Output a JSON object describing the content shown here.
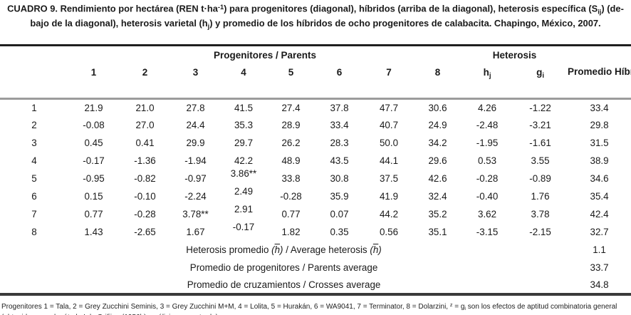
{
  "colors": {
    "text": "#1a1a1a",
    "rule_top": "#1f1f1f",
    "rule_under_header": "#9c9c9c",
    "rule_bottom": "#3a3a3a",
    "background": "#ffffff"
  },
  "title": {
    "line1": [
      {
        "t": "CUADRO 9. Rendimiento por hectárea (REN t·ha",
        "s": ""
      },
      {
        "t": "-1",
        "s": "sup"
      },
      {
        "t": ") para progenitores (diagonal), híbridos (arriba de la diagonal), heterosis específica (S",
        "s": ""
      },
      {
        "t": "ij",
        "s": "sub"
      },
      {
        "t": ") (de-",
        "s": ""
      }
    ],
    "line2": [
      {
        "t": "bajo de la diagonal), heterosis varietal (h",
        "s": ""
      },
      {
        "t": "j",
        "s": "sub"
      },
      {
        "t": ") y promedio de los híbridos de ocho progenitores de calabacita. Chapingo, México, 2007.",
        "s": ""
      }
    ]
  },
  "table": {
    "group_headers": {
      "parents": "Progenitores / Parents",
      "heterosis": "Heterosis",
      "average": "Promedio Híbridos / Hybrids Average"
    },
    "parent_numbers": [
      "1",
      "2",
      "3",
      "4",
      "5",
      "6",
      "7",
      "8"
    ],
    "hj": [
      {
        "t": "h",
        "s": ""
      },
      {
        "t": "j",
        "s": "sub"
      }
    ],
    "gi": [
      {
        "t": "g",
        "s": ""
      },
      {
        "t": "i",
        "s": "sub"
      }
    ],
    "rows": [
      {
        "label": "1",
        "values": [
          "21.9",
          "21.0",
          "27.8",
          "41.5",
          "27.4",
          "37.8",
          "47.7",
          "30.6",
          "4.26",
          "-1.22",
          "33.4"
        ]
      },
      {
        "label": "2",
        "values": [
          "-0.08",
          "27.0",
          "24.4",
          "35.3",
          "28.9",
          "33.4",
          "40.7",
          "24.9",
          "-2.48",
          "-3.21",
          "29.8"
        ]
      },
      {
        "label": "3",
        "values": [
          "0.45",
          "0.41",
          "29.9",
          "29.7",
          "26.2",
          "28.3",
          "50.0",
          "34.2",
          "-1.95",
          "-1.61",
          "31.5"
        ]
      },
      {
        "label": "4",
        "values": [
          "-0.17",
          "-1.36",
          "-1.94",
          "42.2",
          "48.9",
          "43.5",
          "44.1",
          "29.6",
          "0.53",
          "3.55",
          "38.9"
        ]
      },
      {
        "label": "5",
        "values": [
          "-0.95",
          "-0.82",
          "-0.97",
          "3.86**",
          "33.8",
          "30.8",
          "37.5",
          "42.6",
          "-0.28",
          "-0.89",
          "34.6"
        ]
      },
      {
        "label": "6",
        "values": [
          "0.15",
          "-0.10",
          "-2.24",
          "2.49",
          "-0.28",
          "35.9",
          "41.9",
          "32.4",
          "-0.40",
          "1.76",
          "35.4"
        ]
      },
      {
        "label": "7",
        "values": [
          "0.77",
          "-0.28",
          "3.78**",
          "2.91",
          "0.77",
          "0.07",
          "44.2",
          "35.2",
          "3.62",
          "3.78",
          "42.4"
        ]
      },
      {
        "label": "8",
        "values": [
          "1.43",
          "-2.65",
          "1.67",
          "-0.17",
          "1.82",
          "0.35",
          "0.56",
          "35.1",
          "-3.15",
          "-2.15",
          "32.7"
        ]
      }
    ],
    "summary_rows": [
      {
        "label_rich": [
          {
            "t": "Heterosis promedio ",
            "s": ""
          },
          {
            "t": "(",
            "s": "i"
          },
          {
            "t": "h",
            "s": "iov"
          },
          {
            "t": ")",
            "s": "i"
          },
          {
            "t": " / Average heterosis ",
            "s": ""
          },
          {
            "t": "(",
            "s": "i"
          },
          {
            "t": "h",
            "s": "iov"
          },
          {
            "t": ")",
            "s": "i"
          }
        ],
        "value": "1.1"
      },
      {
        "label_rich": [
          {
            "t": "Promedio de progenitores / Parents average",
            "s": ""
          }
        ],
        "value": "33.7"
      },
      {
        "label_rich": [
          {
            "t": "Promedio de cruzamientos / Crosses average",
            "s": ""
          }
        ],
        "value": "34.8"
      }
    ]
  },
  "footnote": [
    {
      "t": "Progenitores 1 = Tala, 2 = Grey Zucchini Seminis, 3 = Grey Zucchini M+M, 4 = Lolita, 5 = Hurakán, 6 = WA9041, 7 = Terminator, 8 = Dolarzini, ",
      "s": ""
    },
    {
      "t": "z",
      "s": "sup"
    },
    {
      "t": " = g",
      "s": ""
    },
    {
      "t": "i",
      "s": "sub"
    },
    {
      "t": " son los efectos de aptitud combinatoria general (obtenidos con el método I de Grifiing (1956b), análisis no mostrado).",
      "s": ""
    }
  ]
}
